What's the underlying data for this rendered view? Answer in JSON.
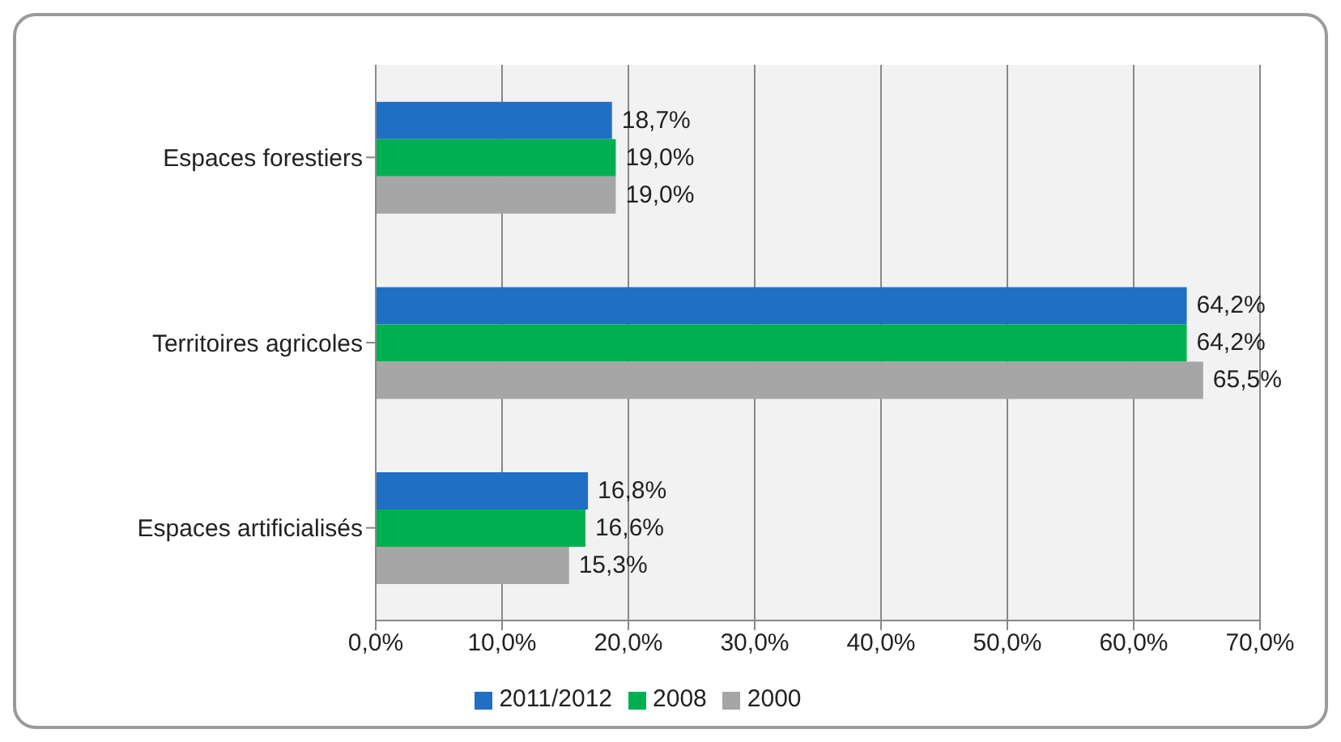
{
  "chart_data": {
    "type": "bar",
    "orientation": "horizontal",
    "categories": [
      "Espaces forestiers",
      "Territoires agricoles",
      "Espaces artificialisés"
    ],
    "series": [
      {
        "name": "2011/2012",
        "color": "#1f6fc5",
        "values": [
          18.7,
          64.2,
          16.8
        ],
        "value_labels": [
          "18,7%",
          "64,2%",
          "16,8%"
        ]
      },
      {
        "name": "2008",
        "color": "#00b050",
        "values": [
          19.0,
          64.2,
          16.6
        ],
        "value_labels": [
          "19,0%",
          "64,2%",
          "16,6%"
        ]
      },
      {
        "name": "2000",
        "color": "#a6a6a6",
        "values": [
          19.0,
          65.5,
          15.3
        ],
        "value_labels": [
          "19,0%",
          "65,5%",
          "15,3%"
        ]
      }
    ],
    "xlim": [
      0,
      70
    ],
    "xticks": [
      {
        "value": 0,
        "label": "0,0%"
      },
      {
        "value": 10,
        "label": "10,0%"
      },
      {
        "value": 20,
        "label": "20,0%"
      },
      {
        "value": 30,
        "label": "30,0%"
      },
      {
        "value": 40,
        "label": "40,0%"
      },
      {
        "value": 50,
        "label": "50,0%"
      },
      {
        "value": 60,
        "label": "60,0%"
      },
      {
        "value": 70,
        "label": "70,0%"
      }
    ],
    "grid": "x",
    "legend": "bottom"
  }
}
